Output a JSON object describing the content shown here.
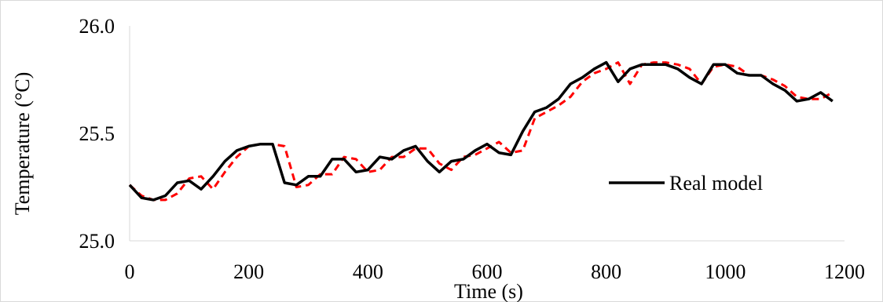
{
  "chart_data": {
    "type": "line",
    "title": "",
    "xlabel": "Time (s)",
    "ylabel": "Temperature (°C)",
    "xlim": [
      0,
      1200
    ],
    "ylim": [
      25.0,
      26.0
    ],
    "xticks": [
      0,
      200,
      400,
      600,
      800,
      1000,
      1200
    ],
    "yticks": [
      "25.0",
      "25.5",
      "26.0"
    ],
    "grid": false,
    "legend_position": "right",
    "legend_label": "Real model",
    "colors": {
      "real": "#000000",
      "predicted": "#ff0000"
    },
    "x": [
      0,
      20,
      40,
      60,
      80,
      100,
      120,
      140,
      160,
      180,
      200,
      220,
      240,
      260,
      280,
      300,
      320,
      340,
      360,
      380,
      400,
      420,
      440,
      460,
      480,
      500,
      520,
      540,
      560,
      580,
      600,
      620,
      640,
      660,
      680,
      700,
      720,
      740,
      760,
      780,
      800,
      820,
      840,
      860,
      880,
      900,
      920,
      940,
      960,
      980,
      1000,
      1020,
      1040,
      1060,
      1080,
      1100,
      1120,
      1140,
      1160,
      1180
    ],
    "series": [
      {
        "name": "Real model",
        "style": "solid",
        "values": [
          25.26,
          25.2,
          25.19,
          25.21,
          25.27,
          25.28,
          25.24,
          25.3,
          25.37,
          25.42,
          25.44,
          25.45,
          25.45,
          25.27,
          25.26,
          25.3,
          25.3,
          25.38,
          25.38,
          25.32,
          25.33,
          25.39,
          25.38,
          25.42,
          25.44,
          25.37,
          25.32,
          25.37,
          25.38,
          25.42,
          25.45,
          25.41,
          25.4,
          25.51,
          25.6,
          25.62,
          25.66,
          25.73,
          25.76,
          25.8,
          25.83,
          25.74,
          25.8,
          25.82,
          25.82,
          25.82,
          25.8,
          25.76,
          25.73,
          25.82,
          25.82,
          25.78,
          25.77,
          25.77,
          25.73,
          25.7,
          25.65,
          25.66,
          25.69,
          25.65
        ]
      },
      {
        "style": "dashed",
        "values": [
          25.26,
          25.21,
          25.19,
          25.19,
          25.22,
          25.29,
          25.3,
          25.24,
          25.32,
          25.39,
          25.44,
          25.45,
          25.45,
          25.44,
          25.25,
          25.26,
          25.31,
          25.31,
          25.39,
          25.38,
          25.32,
          25.33,
          25.39,
          25.39,
          25.43,
          25.43,
          25.36,
          25.33,
          25.39,
          25.4,
          25.43,
          25.46,
          25.41,
          25.42,
          25.57,
          25.6,
          25.63,
          25.67,
          25.74,
          25.78,
          25.8,
          25.83,
          25.73,
          25.82,
          25.83,
          25.83,
          25.82,
          25.8,
          25.73,
          25.81,
          25.82,
          25.81,
          25.77,
          25.77,
          25.75,
          25.72,
          25.67,
          25.66,
          25.66,
          25.69
        ]
      }
    ]
  }
}
